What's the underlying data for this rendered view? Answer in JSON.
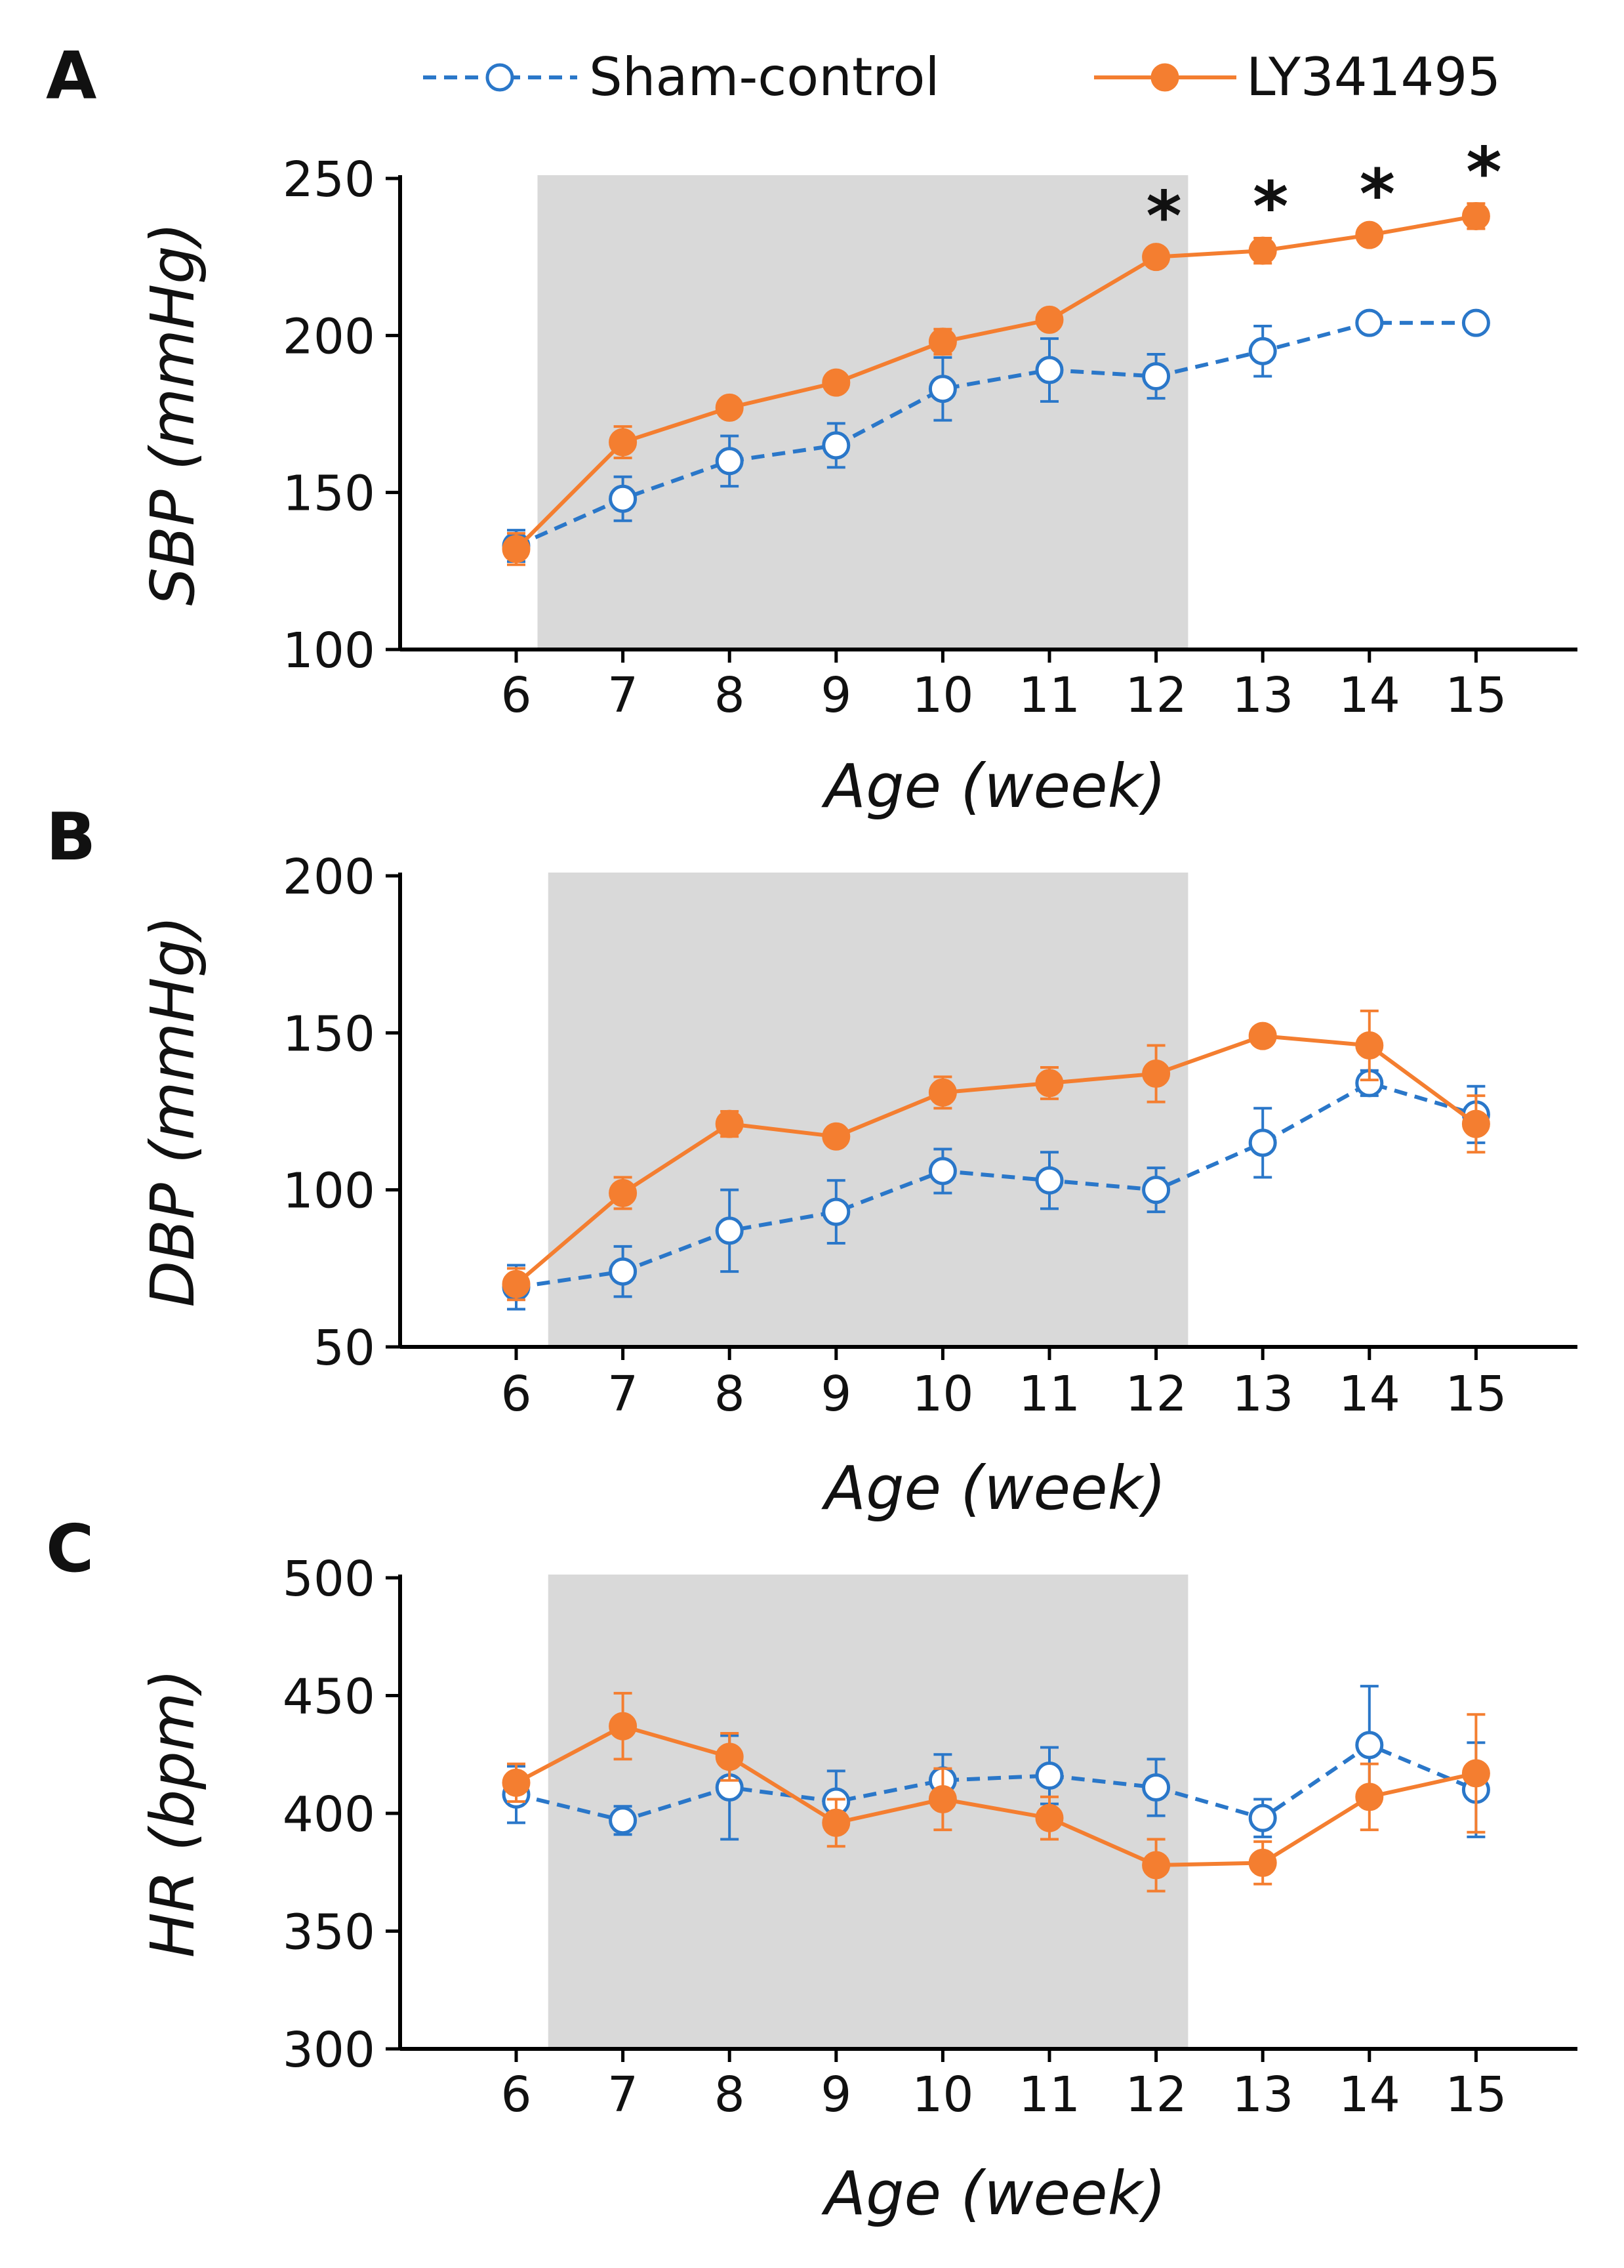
{
  "legend": [
    {
      "name": "Sham-control",
      "color": "#2a77c9",
      "marker": "open-circle",
      "line": "dashed"
    },
    {
      "name": "LY341495",
      "color": "#f47e30",
      "marker": "filled-circle",
      "line": "solid"
    }
  ],
  "shading_color": "#d9d9d9",
  "chart_data": [
    {
      "panel": "A",
      "type": "line",
      "xlabel": "Age (week)",
      "ylabel": "SBP (mmHg)",
      "x": [
        6,
        7,
        8,
        9,
        10,
        11,
        12,
        13,
        14,
        15
      ],
      "ylim": [
        100,
        250
      ],
      "yticks": [
        100,
        150,
        200,
        250
      ],
      "shaded_range": [
        6.2,
        12.3
      ],
      "series": [
        {
          "name": "Sham-control",
          "values": [
            133,
            148,
            160,
            165,
            183,
            189,
            187,
            195,
            204,
            204
          ],
          "errors": [
            5,
            7,
            8,
            7,
            10,
            10,
            7,
            8,
            2,
            2
          ]
        },
        {
          "name": "LY341495",
          "values": [
            132,
            166,
            177,
            185,
            198,
            205,
            225,
            227,
            232,
            238
          ],
          "errors": [
            5,
            5,
            3,
            2,
            4,
            2,
            3,
            4,
            3,
            4
          ]
        }
      ],
      "significance": [
        {
          "x": 12,
          "label": "*"
        },
        {
          "x": 13,
          "label": "*"
        },
        {
          "x": 14,
          "label": "*"
        },
        {
          "x": 15,
          "label": "*"
        }
      ]
    },
    {
      "panel": "B",
      "type": "line",
      "xlabel": "Age (week)",
      "ylabel": "DBP (mmHg)",
      "x": [
        6,
        7,
        8,
        9,
        10,
        11,
        12,
        13,
        14,
        15
      ],
      "ylim": [
        50,
        200
      ],
      "yticks": [
        50,
        100,
        150,
        200
      ],
      "shaded_range": [
        6.3,
        12.3
      ],
      "series": [
        {
          "name": "Sham-control",
          "values": [
            69,
            74,
            87,
            93,
            106,
            103,
            100,
            115,
            134,
            124
          ],
          "errors": [
            7,
            8,
            13,
            10,
            7,
            9,
            7,
            11,
            4,
            9
          ]
        },
        {
          "name": "LY341495",
          "values": [
            70,
            99,
            121,
            117,
            131,
            134,
            137,
            149,
            146,
            121
          ],
          "errors": [
            5,
            5,
            4,
            3,
            5,
            5,
            9,
            2,
            11,
            9
          ]
        }
      ],
      "significance": []
    },
    {
      "panel": "C",
      "type": "line",
      "xlabel": "Age (week)",
      "ylabel": "HR (bpm)",
      "x": [
        6,
        7,
        8,
        9,
        10,
        11,
        12,
        13,
        14,
        15
      ],
      "ylim": [
        300,
        500
      ],
      "yticks": [
        300,
        350,
        400,
        450,
        500
      ],
      "shaded_range": [
        6.3,
        12.3
      ],
      "series": [
        {
          "name": "Sham-control",
          "values": [
            408,
            397,
            411,
            405,
            414,
            416,
            411,
            398,
            429,
            410
          ],
          "errors": [
            12,
            6,
            22,
            13,
            11,
            12,
            12,
            8,
            25,
            20
          ]
        },
        {
          "name": "LY341495",
          "values": [
            413,
            437,
            424,
            396,
            406,
            398,
            378,
            379,
            407,
            417
          ],
          "errors": [
            8,
            14,
            10,
            10,
            13,
            9,
            11,
            9,
            14,
            25
          ]
        }
      ],
      "significance": []
    }
  ]
}
